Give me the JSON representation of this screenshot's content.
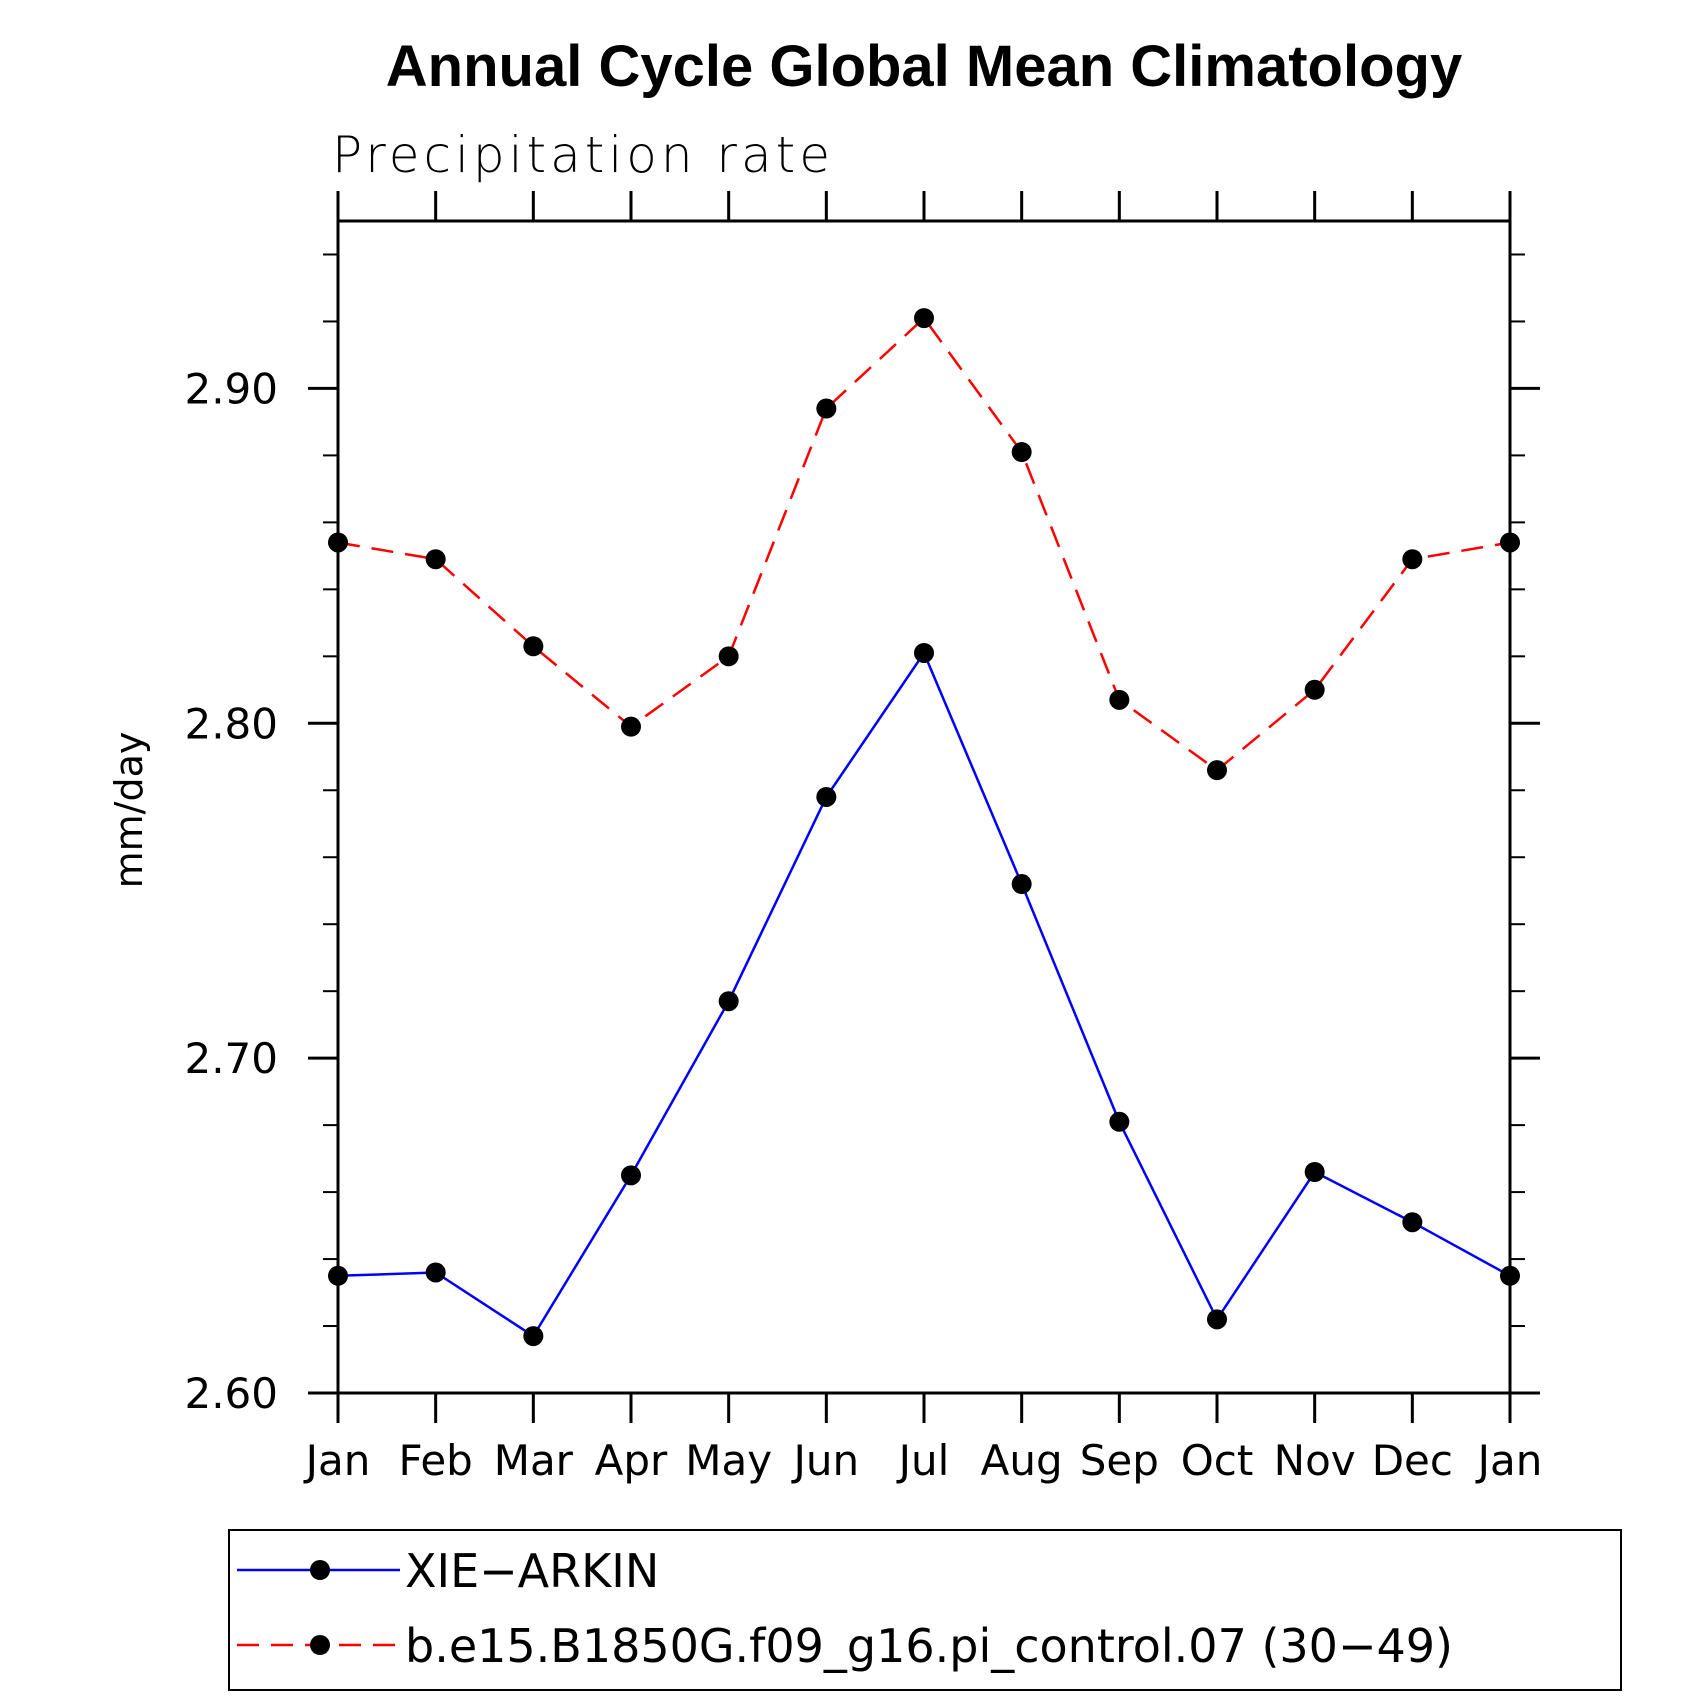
{
  "chart_data": {
    "type": "line",
    "title": "Annual Cycle Global Mean Climatology",
    "subtitle": "Precipitation rate",
    "ylabel": "mm/day",
    "xlabel": "",
    "categories": [
      "Jan",
      "Feb",
      "Mar",
      "Apr",
      "May",
      "Jun",
      "Jul",
      "Aug",
      "Sep",
      "Oct",
      "Nov",
      "Dec",
      "Jan"
    ],
    "ylim": [
      2.6,
      2.95
    ],
    "yticks": [
      2.6,
      2.7,
      2.8,
      2.9
    ],
    "ytick_labels": [
      "2.60",
      "2.70",
      "2.80",
      "2.90"
    ],
    "grid": false,
    "legend_position": "bottom",
    "series": [
      {
        "name": "XIE−ARKIN",
        "color": "#0000ff",
        "dash": "solid",
        "marker": "filled-circle",
        "values": [
          2.635,
          2.636,
          2.617,
          2.665,
          2.717,
          2.778,
          2.821,
          2.752,
          2.681,
          2.622,
          2.666,
          2.651,
          2.635
        ]
      },
      {
        "name": "b.e15.B1850G.f09_g16.pi_control.07 (30−49)",
        "color": "#ff0000",
        "dash": "dashed",
        "marker": "filled-circle",
        "values": [
          2.854,
          2.849,
          2.823,
          2.799,
          2.82,
          2.894,
          2.921,
          2.881,
          2.807,
          2.786,
          2.81,
          2.849,
          2.854
        ]
      }
    ]
  }
}
